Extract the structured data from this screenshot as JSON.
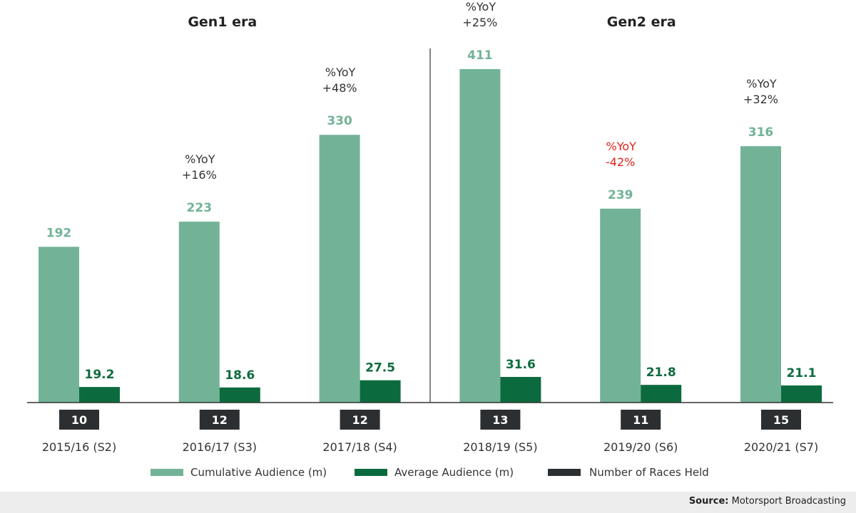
{
  "colors": {
    "cumulative": "#72b397",
    "average": "#0c6b3e",
    "races": "#2c2f31",
    "negative": "#e2231a",
    "axis": "#333333"
  },
  "chart_data": {
    "type": "bar",
    "categories": [
      "2015/16 (S2)",
      "2016/17 (S3)",
      "2017/18 (S4)",
      "2018/19 (S5)",
      "2019/20 (S6)",
      "2020/21 (S7)"
    ],
    "series": [
      {
        "name": "Cumulative Audience (m)",
        "values": [
          192,
          223,
          330,
          411,
          239,
          316
        ]
      },
      {
        "name": "Average Audience (m)",
        "values": [
          19.2,
          18.6,
          27.5,
          31.6,
          21.8,
          21.1
        ]
      }
    ],
    "races_held": {
      "name": "Number of Races Held",
      "values": [
        10,
        12,
        12,
        13,
        11,
        15
      ]
    },
    "yoy": [
      null,
      {
        "label": "%YoY",
        "value": "+16%",
        "negative": false
      },
      {
        "label": "%YoY",
        "value": "+48%",
        "negative": false
      },
      {
        "label": "%YoY",
        "value": "+25%",
        "negative": false
      },
      {
        "label": "%YoY",
        "value": "-42%",
        "negative": true
      },
      {
        "label": "%YoY",
        "value": "+32%",
        "negative": false
      }
    ],
    "eras": [
      {
        "label": "Gen1 era",
        "categories": [
          0,
          1,
          2
        ]
      },
      {
        "label": "Gen2 era",
        "categories": [
          3,
          4,
          5
        ]
      }
    ],
    "ylim": [
      0,
      411
    ],
    "grid": false,
    "legend_position": "bottom"
  },
  "footer": {
    "source_label": "Source:",
    "source_text": "Motorsport Broadcasting"
  }
}
